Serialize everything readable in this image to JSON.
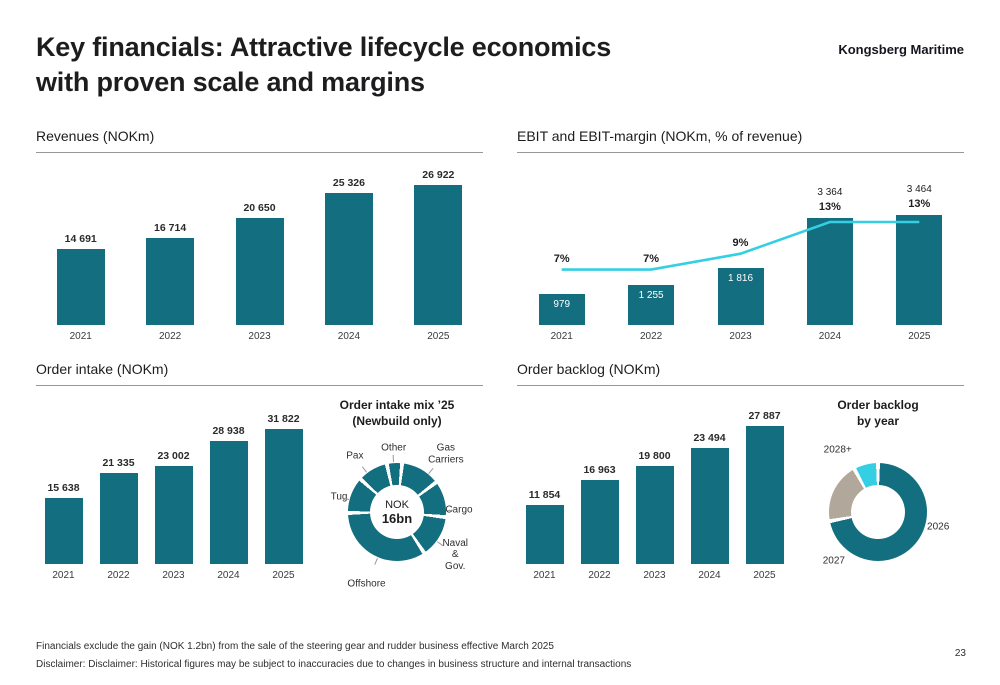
{
  "header": {
    "title_line1": "Key financials: Attractive lifecycle economics",
    "title_line2": "with proven scale and margins",
    "brand": "Kongsberg Maritime"
  },
  "colors": {
    "teal": "#136E7F",
    "cyan": "#35CFE3",
    "gray_segment": "#B1A89B"
  },
  "footer": {
    "note1": "Financials exclude the gain (NOK 1.2bn) from the sale of the steering gear and rudder business effective March 2025",
    "note2": "Disclaimer: Disclaimer: Historical figures may be subject to inaccuracies due to changes in business structure and internal transactions",
    "page_number": "23"
  },
  "chart_data": [
    {
      "id": "revenues",
      "type": "bar",
      "title": "Revenues (NOKm)",
      "categories": [
        "2021",
        "2022",
        "2023",
        "2024",
        "2025"
      ],
      "values": [
        14691,
        16714,
        20650,
        25326,
        26922
      ],
      "labels": [
        "14 691",
        "16 714",
        "20 650",
        "25 326",
        "26 922"
      ],
      "bar_color": "#136E7F",
      "ylim": [
        0,
        26922
      ],
      "grid": false
    },
    {
      "id": "ebit",
      "type": "bar+line",
      "title": "EBIT and EBIT-margin (NOKm, % of revenue)",
      "categories": [
        "2021",
        "2022",
        "2023",
        "2024",
        "2025"
      ],
      "series": [
        {
          "name": "EBIT (NOKm)",
          "type": "bar",
          "values": [
            979,
            1255,
            1816,
            3364,
            3464
          ],
          "labels": [
            "979",
            "1 255",
            "1 816",
            "3 364",
            "3 464"
          ],
          "label_inside": [
            true,
            true,
            true,
            false,
            false
          ]
        },
        {
          "name": "EBIT-margin (% of revenue)",
          "type": "line",
          "values": [
            7,
            7,
            9,
            13,
            13
          ],
          "labels": [
            "7%",
            "7%",
            "9%",
            "13%",
            "13%"
          ]
        }
      ],
      "bar_color": "#136E7F",
      "line_color": "#35CFE3",
      "grid": false
    },
    {
      "id": "order_intake",
      "type": "bar",
      "title": "Order intake (NOKm)",
      "categories": [
        "2021",
        "2022",
        "2023",
        "2024",
        "2025"
      ],
      "values": [
        15638,
        21335,
        23002,
        28938,
        31822
      ],
      "labels": [
        "15 638",
        "21 335",
        "23 002",
        "28 938",
        "31 822"
      ],
      "bar_color": "#136E7F",
      "ylim": [
        0,
        31822
      ],
      "grid": false
    },
    {
      "id": "intake_mix",
      "type": "pie",
      "title_line1": "Order intake mix ’25",
      "title_line2": "(Newbuild only)",
      "center_line1": "NOK",
      "center_line2": "16bn",
      "start_angle": -12,
      "ticks": true,
      "segments": [
        {
          "name": "Other",
          "value": 5,
          "color": "#136E7F",
          "angle": 357,
          "lr": 64
        },
        {
          "name": "Gas Carriers",
          "value": 13,
          "color": "#136E7F",
          "angle": 40,
          "lr": 76
        },
        {
          "name": "Cargo",
          "value": 12,
          "color": "#136E7F",
          "angle": 88,
          "lr": 62
        },
        {
          "name": "Naval & Gov.",
          "value": 14,
          "color": "#136E7F",
          "angle": 126,
          "lr": 72
        },
        {
          "name": "Offshore",
          "value": 34,
          "color": "#136E7F",
          "angle": 203,
          "lr": 78
        },
        {
          "name": "Tug",
          "value": 12,
          "color": "#136E7F",
          "angle": 285,
          "lr": 60
        },
        {
          "name": "Pax",
          "value": 10,
          "color": "#136E7F",
          "angle": 323,
          "lr": 70
        }
      ]
    },
    {
      "id": "order_backlog",
      "type": "bar",
      "title": "Order backlog (NOKm)",
      "categories": [
        "2021",
        "2022",
        "2023",
        "2024",
        "2025"
      ],
      "values": [
        11854,
        16963,
        19800,
        23494,
        27887
      ],
      "labels": [
        "11 854",
        "16 963",
        "19 800",
        "23 494",
        "27 887"
      ],
      "bar_color": "#136E7F",
      "ylim": [
        0,
        27887
      ],
      "grid": false
    },
    {
      "id": "backlog_by_year",
      "type": "pie",
      "title_line1": "Order backlog",
      "title_line2": "by year",
      "start_angle": 0,
      "ticks": false,
      "segments": [
        {
          "name": "2026",
          "value": 72,
          "color": "#136E7F",
          "angle": 104,
          "lr": 62
        },
        {
          "name": "2027",
          "value": 20,
          "color": "#B1A89B",
          "angle": 222,
          "lr": 66
        },
        {
          "name": "2028+",
          "value": 8,
          "color": "#35CFE3",
          "angle": 327,
          "lr": 74
        }
      ]
    }
  ]
}
